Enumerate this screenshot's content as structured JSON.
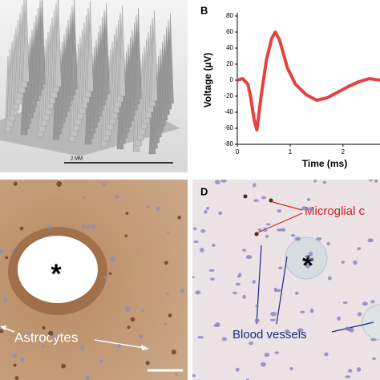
{
  "panel_a": {
    "scale_bar": "2 MM"
  },
  "chart_data": {
    "type": "line",
    "panel_label": "B",
    "xlabel": "Time (ms)",
    "ylabel": "Voltage (µV)",
    "x": [
      0,
      0.1,
      0.2,
      0.25,
      0.32,
      0.37,
      0.45,
      0.55,
      0.65,
      0.72,
      0.8,
      0.95,
      1.1,
      1.3,
      1.5,
      1.7,
      1.9,
      2.1,
      2.3,
      2.5,
      2.7
    ],
    "series": [
      {
        "name": null,
        "color": "#e02020",
        "values": [
          0,
          2,
          -5,
          -20,
          -50,
          -62,
          -20,
          25,
          52,
          60,
          50,
          15,
          -5,
          -18,
          -25,
          -22,
          -15,
          -8,
          -2,
          2,
          0
        ]
      }
    ],
    "xlim": [
      0,
      2.7
    ],
    "xticks": [
      0,
      1,
      2
    ],
    "ylim": [
      -80,
      80
    ],
    "yticks": [
      -80,
      -60,
      -40,
      -20,
      0,
      20,
      40,
      60,
      80
    ]
  },
  "panel_c": {
    "asterisk": "*",
    "label": "Astrocytes"
  },
  "panel_d": {
    "panel_label": "D",
    "asterisk": "*",
    "microglia": "Microglial c",
    "vessels": "Blood vessels"
  }
}
